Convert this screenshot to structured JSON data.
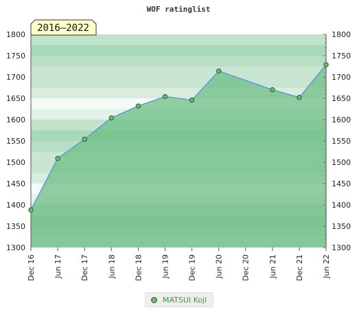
{
  "title": "WOF ratinglist",
  "badge": "2016–2022",
  "legend": {
    "label": "MATSUI Koji"
  },
  "colors": {
    "area": "#6dbd85",
    "line": "#5b9bd5",
    "marker_fill": "#6db86d",
    "marker_stroke": "#2f5f2f",
    "badge_bg": "#ffffcc"
  },
  "chart_data": {
    "type": "area",
    "title": "WOF ratinglist",
    "x": [
      "Dec 16",
      "Jun 17",
      "Dec 17",
      "Jun 18",
      "Dec 18",
      "Jun 19",
      "Dec 19",
      "Jun 20",
      "Dec 20",
      "Jun 21",
      "Dec 21",
      "Jun 22"
    ],
    "series": [
      {
        "name": "MATSUI Koji",
        "points": [
          {
            "x": "Dec 16",
            "y": 1388
          },
          {
            "x": "Jun 17",
            "y": 1509
          },
          {
            "x": "Dec 17",
            "y": 1554
          },
          {
            "x": "Jun 18",
            "y": 1604
          },
          {
            "x": "Dec 18",
            "y": 1632
          },
          {
            "x": "Jun 19",
            "y": 1654
          },
          {
            "x": "Dec 19",
            "y": 1646
          },
          {
            "x": "Jun 20",
            "y": 1714
          },
          {
            "x": "Jun 21",
            "y": 1670
          },
          {
            "x": "Dec 21",
            "y": 1652
          },
          {
            "x": "Jun 22",
            "y": 1729
          }
        ]
      }
    ],
    "yticks": [
      1300,
      1350,
      1400,
      1450,
      1500,
      1550,
      1600,
      1650,
      1700,
      1750,
      1800
    ],
    "ylim": [
      1300,
      1800
    ],
    "grid": true,
    "legend_position": "bottom-center"
  }
}
